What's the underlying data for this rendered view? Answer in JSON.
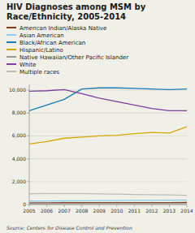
{
  "chart_data": {
    "type": "line",
    "title": "HIV Diagnoses among MSM by\nRace/Ethnicity, 2005-2014",
    "annotations": [
      "Source: Centers for Disease Control and Prevention"
    ],
    "x": [
      2005,
      2006,
      2007,
      2008,
      2009,
      2010,
      2011,
      2012,
      2013,
      2014
    ],
    "series": [
      {
        "name": "American Indian/Alaska Native",
        "color": "#8B3A0F",
        "values": [
          150,
          155,
          160,
          160,
          165,
          165,
          170,
          170,
          175,
          180
        ]
      },
      {
        "name": "Asian American",
        "color": "#87CEEB",
        "values": [
          300,
          310,
          320,
          330,
          340,
          350,
          360,
          370,
          380,
          390
        ]
      },
      {
        "name": "Black/African American",
        "color": "#1B7AB5",
        "values": [
          8200,
          8700,
          9200,
          10100,
          10200,
          10200,
          10150,
          10100,
          10050,
          10100
        ]
      },
      {
        "name": "Hispanic/Latino",
        "color": "#D4A800",
        "values": [
          5300,
          5500,
          5800,
          5900,
          6000,
          6050,
          6200,
          6300,
          6250,
          6800
        ]
      },
      {
        "name": "Native Hawaiian/Other Pacific Islander",
        "color": "#999999",
        "values": [
          70,
          72,
          74,
          75,
          77,
          78,
          80,
          80,
          82,
          83
        ]
      },
      {
        "name": "White",
        "color": "#7B3FA0",
        "values": [
          9900,
          9950,
          10050,
          9700,
          9300,
          9000,
          8700,
          8400,
          8200,
          8200
        ]
      },
      {
        "name": "Multiple races",
        "color": "#BBBBBB",
        "values": [
          950,
          960,
          970,
          960,
          930,
          910,
          880,
          860,
          840,
          800
        ]
      }
    ],
    "xlim": [
      2005,
      2014
    ],
    "xticks": [
      2005,
      2006,
      2007,
      2008,
      2009,
      2010,
      2011,
      2012,
      2013,
      2014
    ],
    "ylim": [
      0,
      10500
    ],
    "yticks": [
      0,
      {
        "value": 2000,
        "label": "2,000"
      },
      {
        "value": 4000,
        "label": "4,000"
      },
      {
        "value": 6000,
        "label": "6,000"
      },
      {
        "value": 8000,
        "label": "8,000"
      },
      {
        "value": 10000,
        "label": "10,000"
      }
    ],
    "grid": true,
    "legend": "upper-left"
  }
}
